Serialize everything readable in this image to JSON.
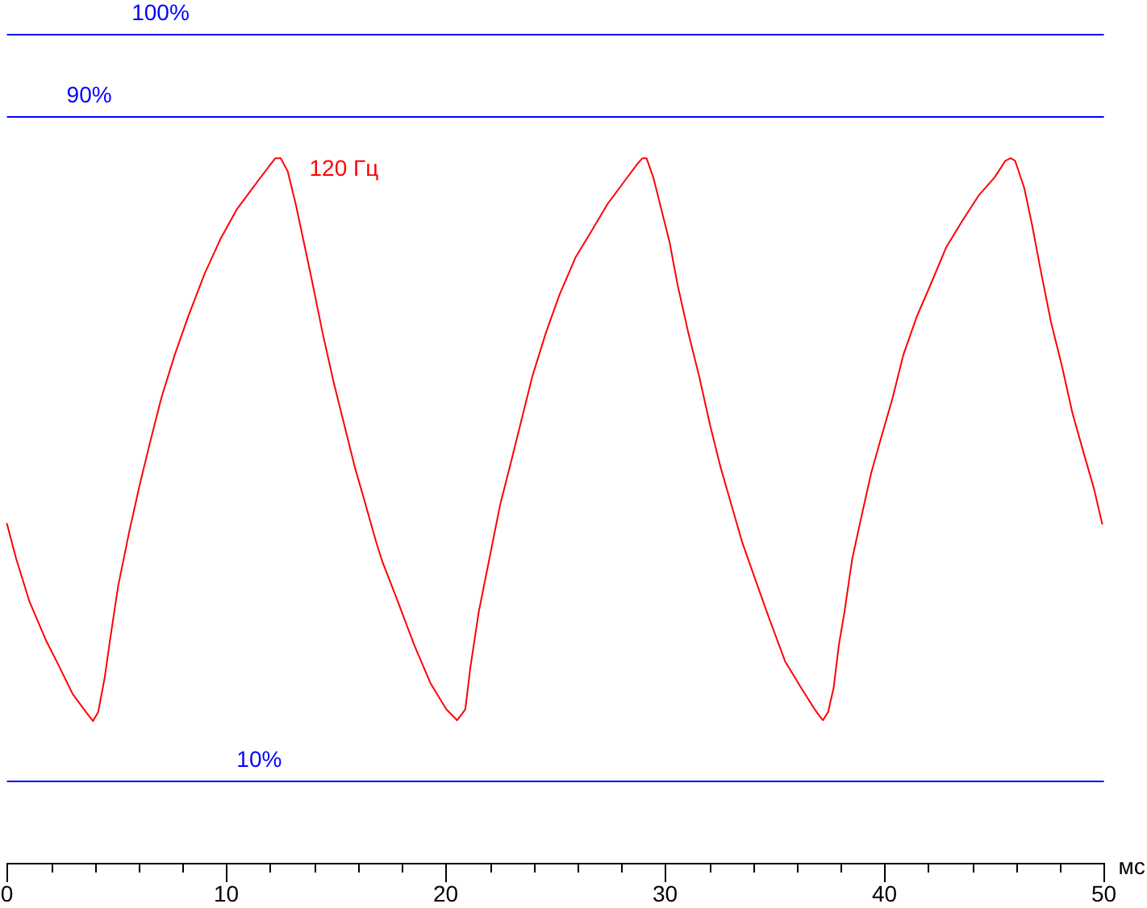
{
  "chart_data": {
    "type": "line",
    "xlabel": "мс",
    "x": [
      0,
      0.42,
      1.03,
      1.77,
      2.38,
      2.99,
      3.6,
      3.92,
      4.16,
      4.46,
      4.7,
      5.07,
      5.57,
      6.06,
      6.54,
      7.04,
      7.65,
      8.26,
      9.0,
      9.74,
      10.47,
      11.2,
      11.94,
      12.24,
      12.48,
      12.8,
      13.16,
      13.53,
      13.89,
      14.39,
      14.88,
      15.37,
      15.86,
      16.35,
      16.84,
      17.09,
      17.82,
      18.56,
      19.3,
      20.03,
      20.52,
      20.89,
      21.13,
      21.5,
      21.99,
      22.48,
      22.97,
      23.46,
      23.95,
      24.56,
      25.18,
      25.91,
      26.64,
      27.38,
      28.11,
      28.73,
      28.97,
      29.15,
      29.46,
      29.83,
      30.2,
      30.57,
      31.06,
      31.55,
      32.04,
      32.53,
      33.02,
      33.51,
      34.12,
      34.74,
      35.47,
      36.2,
      36.82,
      37.19,
      37.43,
      37.68,
      37.92,
      38.17,
      38.53,
      38.9,
      39.39,
      39.88,
      40.37,
      40.86,
      41.47,
      42.09,
      42.82,
      43.56,
      44.29,
      45.02,
      45.51,
      45.75,
      45.95,
      46.37,
      46.73,
      47.1,
      47.59,
      48.08,
      48.57,
      49.06,
      49.55,
      49.92
    ],
    "series": [
      {
        "name": "120 Гц",
        "color": "#ff0000",
        "values": [
          40.9,
          36.7,
          31.5,
          26.9,
          23.7,
          20.4,
          18.2,
          17.1,
          18.2,
          22.4,
          26.9,
          33.4,
          39.9,
          45.7,
          50.9,
          56.1,
          61.3,
          65.9,
          71.0,
          75.3,
          78.8,
          81.4,
          84.0,
          85.0,
          85.0,
          83.4,
          79.5,
          74.9,
          70.4,
          63.9,
          58.1,
          52.9,
          47.7,
          43.2,
          38.6,
          36.5,
          31.5,
          26.3,
          21.7,
          18.5,
          17.2,
          18.5,
          23.7,
          30.2,
          36.7,
          43.2,
          48.3,
          53.5,
          58.7,
          63.9,
          68.5,
          73.0,
          76.2,
          79.5,
          82.1,
          84.3,
          85.0,
          85.0,
          82.7,
          78.8,
          74.9,
          69.7,
          63.9,
          58.7,
          52.9,
          47.7,
          43.2,
          38.7,
          34.1,
          29.5,
          24.3,
          21.1,
          18.5,
          17.2,
          18.2,
          21.1,
          26.3,
          30.2,
          36.7,
          41.2,
          47.0,
          51.6,
          56.1,
          61.3,
          65.9,
          69.7,
          74.3,
          77.5,
          80.5,
          82.7,
          84.7,
          85.0,
          84.7,
          81.4,
          76.9,
          71.7,
          65.2,
          60.0,
          54.2,
          49.6,
          45.1,
          40.9
        ]
      }
    ],
    "xlim": [
      0,
      50
    ],
    "xticks": [
      0,
      {
        "value": 2,
        "label": null
      },
      {
        "value": 4,
        "label": null
      },
      {
        "value": 6,
        "label": null
      },
      {
        "value": 8,
        "label": null
      },
      10,
      {
        "value": 12,
        "label": null
      },
      {
        "value": 14,
        "label": null
      },
      {
        "value": 16,
        "label": null
      },
      {
        "value": 18,
        "label": null
      },
      20,
      {
        "value": 22,
        "label": null
      },
      {
        "value": 24,
        "label": null
      },
      {
        "value": 26,
        "label": null
      },
      {
        "value": 28,
        "label": null
      },
      30,
      {
        "value": 32,
        "label": null
      },
      {
        "value": 34,
        "label": null
      },
      {
        "value": 36,
        "label": null
      },
      {
        "value": 38,
        "label": null
      },
      40,
      {
        "value": 42,
        "label": null
      },
      {
        "value": 44,
        "label": null
      },
      {
        "value": 46,
        "label": null
      },
      {
        "value": 48,
        "label": null
      },
      50
    ],
    "ylim": [
      0,
      100
    ],
    "tick_labels": "x",
    "ref_lines": [
      {
        "axis": "y",
        "value": 100,
        "label": "100%",
        "color": "#0000ff"
      },
      {
        "axis": "y",
        "value": 90,
        "label": "90%",
        "color": "#0000ff"
      },
      {
        "axis": "y",
        "value": 10,
        "label": "10%",
        "color": "#0000ff"
      }
    ]
  }
}
